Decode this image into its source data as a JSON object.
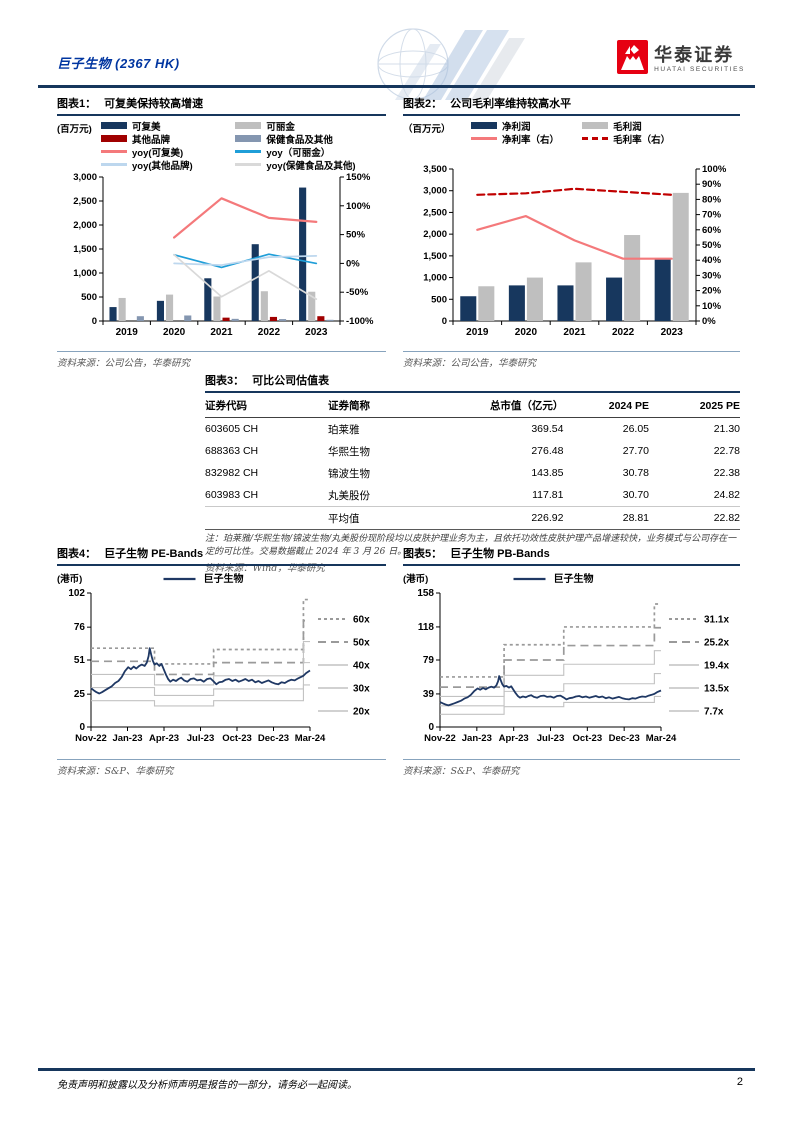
{
  "header": {
    "title": "巨子生物 (2367 HK)",
    "logo_cn": "华泰证券",
    "logo_en": "HUATAI SECURITIES",
    "brand_red": "#E60012",
    "navy": "#16365C"
  },
  "figures": {
    "fig1": {
      "label": "图表1：",
      "title": "可复美保持较高增速",
      "unit": "(百万元)",
      "source": "资料来源：公司公告，华泰研究"
    },
    "fig2": {
      "label": "图表2：",
      "title": "公司毛利率维持较高水平",
      "unit": "（百万元）",
      "source": "资料来源：公司公告，华泰研究"
    },
    "fig3": {
      "label": "图表3：",
      "title": "可比公司估值表",
      "note": "注：珀莱雅/华熙生物/锦波生物/丸美股份现阶段均以皮肤护理业务为主，且依托功效性皮肤护理产品增速较快，业务模式与公司存在一定的可比性。交易数据截止 2024 年 3 月 26 日。",
      "source": "资料来源：Wind，华泰研究"
    },
    "fig4": {
      "label": "图表4：",
      "title": "巨子生物 PE-Bands",
      "unit": "(港币)",
      "source": "资料来源：S&P、华泰研究"
    },
    "fig5": {
      "label": "图表5：",
      "title": "巨子生物 PB-Bands",
      "unit": "(港币)",
      "source": "资料来源：S&P、华泰研究"
    }
  },
  "chart_data": [
    {
      "id": "fig1",
      "type": "bar",
      "title": "可复美保持较高增速",
      "unit": "百万元",
      "categories": [
        "2019",
        "2020",
        "2021",
        "2022",
        "2023"
      ],
      "bar_series": [
        {
          "name": "可复美",
          "color": "#17375E",
          "values": [
            290,
            420,
            890,
            1600,
            2780
          ]
        },
        {
          "name": "可丽金",
          "color": "#BFBFBF",
          "values": [
            480,
            550,
            510,
            620,
            610
          ]
        },
        {
          "name": "其他品牌",
          "color": "#A00000",
          "values": [
            0,
            0,
            70,
            85,
            100
          ]
        },
        {
          "name": "保健食品及其他",
          "color": "#8496B0",
          "values": [
            100,
            115,
            45,
            40,
            25
          ]
        }
      ],
      "line_series": [
        {
          "name": "yoy(可复美)",
          "color": "#F4797B",
          "style": "solid",
          "values": [
            null,
            45,
            113,
            79,
            72
          ]
        },
        {
          "name": "yoy（可丽金）",
          "color": "#1F9ED8",
          "style": "solid",
          "values": [
            null,
            15,
            -7,
            16,
            0
          ]
        },
        {
          "name": "yoy(其他品牌)",
          "color": "#BDD7EE",
          "style": "solid",
          "values": [
            null,
            0,
            -3,
            11,
            13
          ]
        },
        {
          "name": "yoy(保健食品及其他)",
          "color": "#D9D9D9",
          "style": "solid",
          "values": [
            null,
            15,
            -58,
            -13,
            -62
          ]
        }
      ],
      "left_axis": {
        "min": 0,
        "max": 3000,
        "ticks": [
          [
            0,
            "0"
          ],
          [
            500,
            "500"
          ],
          [
            1000,
            "1,000"
          ],
          [
            1500,
            "1,500"
          ],
          [
            2000,
            "2,000"
          ],
          [
            2500,
            "2,500"
          ],
          [
            3000,
            "3,000"
          ]
        ]
      },
      "right_axis": {
        "min": -100,
        "max": 150,
        "ticks": [
          [
            -100,
            "-100%"
          ],
          [
            -50,
            "-50%"
          ],
          [
            0,
            "0%"
          ],
          [
            50,
            "50%"
          ],
          [
            100,
            "100%"
          ],
          [
            150,
            "150%"
          ]
        ]
      }
    },
    {
      "id": "fig2",
      "type": "bar",
      "title": "公司毛利率维持较高水平",
      "unit": "百万元",
      "categories": [
        "2019",
        "2020",
        "2021",
        "2022",
        "2023"
      ],
      "bar_series": [
        {
          "name": "净利润",
          "color": "#17375E",
          "values": [
            570,
            820,
            820,
            1000,
            1430
          ]
        },
        {
          "name": "毛利润",
          "color": "#BFBFBF",
          "values": [
            800,
            1000,
            1350,
            1980,
            2950
          ]
        }
      ],
      "line_series": [
        {
          "name": "净利率（右）",
          "color": "#F4797B",
          "style": "solid",
          "values": [
            60,
            69,
            53,
            41,
            41
          ]
        },
        {
          "name": "毛利率（右）",
          "color": "#C00000",
          "style": "dashed",
          "values": [
            83,
            84,
            87,
            85,
            83
          ]
        }
      ],
      "left_axis": {
        "min": 0,
        "max": 3500,
        "ticks": [
          [
            0,
            "0"
          ],
          [
            500,
            "500"
          ],
          [
            1000,
            "1,000"
          ],
          [
            1500,
            "1,500"
          ],
          [
            2000,
            "2,000"
          ],
          [
            2500,
            "2,500"
          ],
          [
            3000,
            "3,000"
          ],
          [
            3500,
            "3,500"
          ]
        ]
      },
      "right_axis": {
        "min": 0,
        "max": 100,
        "ticks": [
          [
            0,
            "0%"
          ],
          [
            10,
            "10%"
          ],
          [
            20,
            "20%"
          ],
          [
            30,
            "30%"
          ],
          [
            40,
            "40%"
          ],
          [
            50,
            "50%"
          ],
          [
            60,
            "60%"
          ],
          [
            70,
            "70%"
          ],
          [
            80,
            "80%"
          ],
          [
            90,
            "90%"
          ],
          [
            100,
            "100%"
          ]
        ]
      }
    },
    {
      "id": "fig3",
      "type": "table",
      "title": "可比公司估值表",
      "columns": [
        "证券代码",
        "证券简称",
        "总市值（亿元）",
        "2024 PE",
        "2025 PE"
      ],
      "rows": [
        [
          "603605 CH",
          "珀莱雅",
          "369.54",
          "26.05",
          "21.30"
        ],
        [
          "688363 CH",
          "华熙生物",
          "276.48",
          "27.70",
          "22.78"
        ],
        [
          "832982 CH",
          "锦波生物",
          "143.85",
          "30.78",
          "22.38"
        ],
        [
          "603983 CH",
          "丸美股份",
          "117.81",
          "30.70",
          "24.82"
        ],
        [
          "",
          "平均值",
          "226.92",
          "28.81",
          "22.82"
        ]
      ]
    },
    {
      "id": "fig4",
      "type": "line",
      "title": "巨子生物 PE-Bands",
      "unit": "港币",
      "price_name": "巨子生物",
      "price_color": "#1F3864",
      "x_ticks": [
        "Nov-22",
        "Jan-23",
        "Apr-23",
        "Jul-23",
        "Oct-23",
        "Dec-23",
        "Mar-24"
      ],
      "y_ticks": [
        [
          0,
          "0"
        ],
        [
          25,
          "25"
        ],
        [
          51,
          "51"
        ],
        [
          76,
          "76"
        ],
        [
          102,
          "102"
        ]
      ],
      "band_breaks": [
        0.29,
        0.56,
        0.97
      ],
      "bands": [
        {
          "label": "60x",
          "style": "dash-small",
          "levels": [
            60,
            48,
            59,
            97
          ]
        },
        {
          "label": "50x",
          "style": "dash-large",
          "levels": [
            50,
            40,
            49,
            81
          ]
        },
        {
          "label": "40x",
          "style": "solid",
          "levels": [
            40,
            32,
            39,
            65
          ]
        },
        {
          "label": "30x",
          "style": "solid",
          "levels": [
            30,
            24,
            29,
            49
          ]
        },
        {
          "label": "20x",
          "style": "solid",
          "levels": [
            20,
            16,
            20,
            32
          ]
        }
      ],
      "price_points": [
        [
          0,
          29.5
        ],
        [
          0.012,
          28
        ],
        [
          0.025,
          26.5
        ],
        [
          0.038,
          25.5
        ],
        [
          0.05,
          26.5
        ],
        [
          0.065,
          28
        ],
        [
          0.08,
          29.5
        ],
        [
          0.095,
          31
        ],
        [
          0.11,
          33.5
        ],
        [
          0.125,
          35
        ],
        [
          0.14,
          38
        ],
        [
          0.155,
          42.5
        ],
        [
          0.17,
          45.5
        ],
        [
          0.182,
          44
        ],
        [
          0.195,
          46
        ],
        [
          0.207,
          44.5
        ],
        [
          0.22,
          46.5
        ],
        [
          0.232,
          47.5
        ],
        [
          0.245,
          46.5
        ],
        [
          0.255,
          49
        ],
        [
          0.263,
          54
        ],
        [
          0.268,
          60
        ],
        [
          0.275,
          55
        ],
        [
          0.282,
          50.5
        ],
        [
          0.29,
          47.5
        ],
        [
          0.3,
          48.5
        ],
        [
          0.312,
          46.5
        ],
        [
          0.322,
          48
        ],
        [
          0.332,
          44
        ],
        [
          0.342,
          40
        ],
        [
          0.352,
          36.5
        ],
        [
          0.362,
          34.5
        ],
        [
          0.375,
          36
        ],
        [
          0.388,
          35
        ],
        [
          0.4,
          36.5
        ],
        [
          0.412,
          37.5
        ],
        [
          0.425,
          35.5
        ],
        [
          0.44,
          34.5
        ],
        [
          0.455,
          36.5
        ],
        [
          0.47,
          37
        ],
        [
          0.485,
          35.5
        ],
        [
          0.5,
          36
        ],
        [
          0.515,
          34.5
        ],
        [
          0.53,
          36.5
        ],
        [
          0.545,
          37
        ],
        [
          0.558,
          35
        ],
        [
          0.572,
          32.5
        ],
        [
          0.585,
          34
        ],
        [
          0.6,
          34.5
        ],
        [
          0.615,
          36
        ],
        [
          0.63,
          36.5
        ],
        [
          0.645,
          35
        ],
        [
          0.66,
          36
        ],
        [
          0.675,
          34.5
        ],
        [
          0.69,
          35.5
        ],
        [
          0.705,
          36.5
        ],
        [
          0.72,
          35
        ],
        [
          0.735,
          36
        ],
        [
          0.75,
          34
        ],
        [
          0.765,
          35
        ],
        [
          0.78,
          33.5
        ],
        [
          0.795,
          34.5
        ],
        [
          0.81,
          35.5
        ],
        [
          0.825,
          34
        ],
        [
          0.84,
          33
        ],
        [
          0.855,
          32.5
        ],
        [
          0.87,
          34
        ],
        [
          0.885,
          33.5
        ],
        [
          0.9,
          35
        ],
        [
          0.915,
          36
        ],
        [
          0.93,
          35.5
        ],
        [
          0.945,
          37
        ],
        [
          0.958,
          38
        ],
        [
          0.97,
          39
        ],
        [
          0.982,
          41
        ],
        [
          1,
          43
        ]
      ]
    },
    {
      "id": "fig5",
      "type": "line",
      "title": "巨子生物 PB-Bands",
      "unit": "港币",
      "price_name": "巨子生物",
      "price_color": "#1F3864",
      "x_ticks": [
        "Nov-22",
        "Jan-23",
        "Apr-23",
        "Jul-23",
        "Oct-23",
        "Dec-23",
        "Mar-24"
      ],
      "y_ticks": [
        [
          0,
          "0"
        ],
        [
          39,
          "39"
        ],
        [
          79,
          "79"
        ],
        [
          118,
          "118"
        ],
        [
          158,
          "158"
        ]
      ],
      "band_breaks": [
        0.29,
        0.56,
        0.97
      ],
      "bands": [
        {
          "label": "31.1x",
          "style": "dash-small",
          "levels": [
            59,
            97,
            118,
            145
          ]
        },
        {
          "label": "25.2x",
          "style": "dash-large",
          "levels": [
            47,
            79,
            96,
            117
          ]
        },
        {
          "label": "19.4x",
          "style": "solid",
          "levels": [
            36,
            61,
            74,
            90
          ]
        },
        {
          "label": "13.5x",
          "style": "solid",
          "levels": [
            25,
            42,
            51,
            63
          ]
        },
        {
          "label": "7.7x",
          "style": "solid",
          "levels": [
            15,
            24,
            29,
            36
          ]
        }
      ],
      "price_points": [
        [
          0,
          29.5
        ],
        [
          0.012,
          28
        ],
        [
          0.025,
          26.5
        ],
        [
          0.038,
          25.5
        ],
        [
          0.05,
          26.5
        ],
        [
          0.065,
          28
        ],
        [
          0.08,
          29.5
        ],
        [
          0.095,
          31
        ],
        [
          0.11,
          33.5
        ],
        [
          0.125,
          35
        ],
        [
          0.14,
          38
        ],
        [
          0.155,
          42.5
        ],
        [
          0.17,
          45.5
        ],
        [
          0.182,
          44
        ],
        [
          0.195,
          46
        ],
        [
          0.207,
          44.5
        ],
        [
          0.22,
          46.5
        ],
        [
          0.232,
          47.5
        ],
        [
          0.245,
          46.5
        ],
        [
          0.255,
          49
        ],
        [
          0.263,
          54
        ],
        [
          0.268,
          60
        ],
        [
          0.275,
          55
        ],
        [
          0.282,
          50.5
        ],
        [
          0.29,
          47.5
        ],
        [
          0.3,
          48.5
        ],
        [
          0.312,
          46.5
        ],
        [
          0.322,
          48
        ],
        [
          0.332,
          44
        ],
        [
          0.342,
          40
        ],
        [
          0.352,
          36.5
        ],
        [
          0.362,
          34.5
        ],
        [
          0.375,
          36
        ],
        [
          0.388,
          35
        ],
        [
          0.4,
          36.5
        ],
        [
          0.412,
          37.5
        ],
        [
          0.425,
          35.5
        ],
        [
          0.44,
          34.5
        ],
        [
          0.455,
          36.5
        ],
        [
          0.47,
          37
        ],
        [
          0.485,
          35.5
        ],
        [
          0.5,
          36
        ],
        [
          0.515,
          34.5
        ],
        [
          0.53,
          36.5
        ],
        [
          0.545,
          37
        ],
        [
          0.558,
          35
        ],
        [
          0.572,
          32.5
        ],
        [
          0.585,
          34
        ],
        [
          0.6,
          34.5
        ],
        [
          0.615,
          36
        ],
        [
          0.63,
          36.5
        ],
        [
          0.645,
          35
        ],
        [
          0.66,
          36
        ],
        [
          0.675,
          34.5
        ],
        [
          0.69,
          35.5
        ],
        [
          0.705,
          36.5
        ],
        [
          0.72,
          35
        ],
        [
          0.735,
          36
        ],
        [
          0.75,
          34
        ],
        [
          0.765,
          35
        ],
        [
          0.78,
          33.5
        ],
        [
          0.795,
          34.5
        ],
        [
          0.81,
          35.5
        ],
        [
          0.825,
          34
        ],
        [
          0.84,
          33
        ],
        [
          0.855,
          32.5
        ],
        [
          0.87,
          34
        ],
        [
          0.885,
          33.5
        ],
        [
          0.9,
          35
        ],
        [
          0.915,
          36
        ],
        [
          0.93,
          35.5
        ],
        [
          0.945,
          37
        ],
        [
          0.958,
          38
        ],
        [
          0.97,
          39
        ],
        [
          0.982,
          41
        ],
        [
          1,
          43
        ]
      ]
    }
  ],
  "footer": {
    "disclaimer": "免责声明和披露以及分析师声明是报告的一部分，请务必一起阅读。",
    "page": "2"
  }
}
